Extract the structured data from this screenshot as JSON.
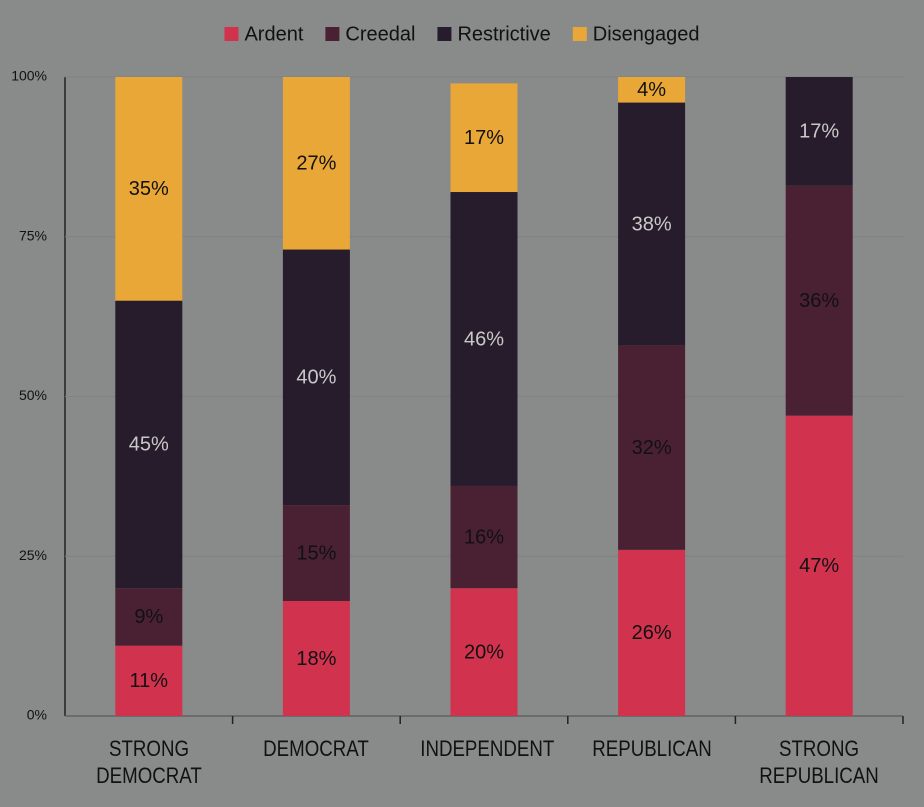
{
  "chart_data": {
    "type": "stacked_bar",
    "categories": [
      "STRONG DEMOCRAT",
      "DEMOCRAT",
      "INDEPENDENT",
      "REPUBLICAN",
      "STRONG REPUBLICAN"
    ],
    "series": [
      {
        "name": "Ardent",
        "color": "#d1334f",
        "label_color": "#111111",
        "values": [
          11,
          18,
          20,
          26,
          47
        ],
        "value_labels": [
          "11%",
          "18%",
          "20%",
          "26%",
          "47%"
        ]
      },
      {
        "name": "Creedal",
        "color": "#4a2133",
        "label_color": "#111111",
        "values": [
          9,
          15,
          16,
          32,
          36
        ],
        "value_labels": [
          "9%",
          "15%",
          "16%",
          "32%",
          "36%"
        ]
      },
      {
        "name": "Restrictive",
        "color": "#271c2b",
        "label_color": "#c9c9c9",
        "values": [
          45,
          40,
          46,
          38,
          17
        ],
        "value_labels": [
          "45%",
          "40%",
          "46%",
          "38%",
          "17%"
        ]
      },
      {
        "name": "Disengaged",
        "color": "#e9a737",
        "label_color": "#111111",
        "values": [
          35,
          27,
          17,
          4,
          null
        ],
        "value_labels": [
          "35%",
          "27%",
          "17%",
          "4%",
          null
        ]
      }
    ],
    "ylim": [
      0,
      100
    ],
    "yticks": [
      {
        "value": 0,
        "label": "0%"
      },
      {
        "value": 25,
        "label": "25%"
      },
      {
        "value": 50,
        "label": "50%"
      },
      {
        "value": 75,
        "label": "75%"
      },
      {
        "value": 100,
        "label": "100%"
      }
    ],
    "grid": true,
    "legend": "top"
  }
}
